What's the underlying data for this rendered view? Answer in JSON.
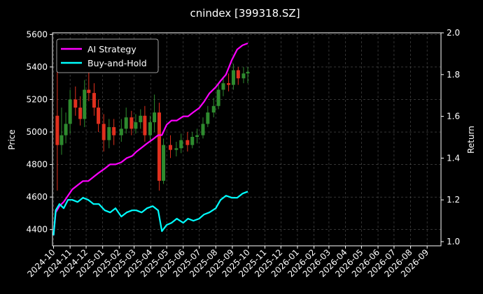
{
  "chart_data": {
    "type": "line",
    "title": "cnindex [399318.SZ]",
    "xlabel": "",
    "ylabel_left": "Price",
    "ylabel_right": "Return",
    "grid": true,
    "legend_placement": "top-left",
    "background": "#000000",
    "colors": {
      "up_candle": "#2e8b2e",
      "down_candle": "#e0301e",
      "ai_strategy": "#ff00ff",
      "buy_and_hold": "#00ffff",
      "grid": "#555555"
    },
    "x_ticks": [
      "2024-10",
      "2024-11",
      "2024-12",
      "2025-01",
      "2025-02",
      "2025-03",
      "2025-04",
      "2025-05",
      "2025-06",
      "2025-07",
      "2025-08",
      "2025-09",
      "2025-10",
      "2025-11",
      "2025-12",
      "2026-01",
      "2026-02",
      "2026-03",
      "2026-04",
      "2026-05",
      "2026-06",
      "2026-07",
      "2026-08",
      "2026-09"
    ],
    "xlim": [
      "2024-09-29",
      "2026-09-27"
    ],
    "y_left": {
      "ylim": [
        4300,
        5610
      ],
      "ticks": [
        4400,
        4600,
        4800,
        5000,
        5200,
        5400,
        5600
      ]
    },
    "y_right": {
      "ylim": [
        0.98,
        2.0
      ],
      "ticks": [
        1.0,
        1.2,
        1.4,
        1.6,
        1.8,
        2.0
      ]
    },
    "candles": {
      "name": "Price",
      "x": [
        "2024-10-08",
        "2024-10-16",
        "2024-10-24",
        "2024-11-01",
        "2024-11-11",
        "2024-11-20",
        "2024-11-28",
        "2024-12-06",
        "2024-12-16",
        "2024-12-24",
        "2025-01-03",
        "2025-01-13",
        "2025-01-22",
        "2025-02-05",
        "2025-02-14",
        "2025-02-24",
        "2025-03-04",
        "2025-03-13",
        "2025-03-21",
        "2025-03-31",
        "2025-04-08",
        "2025-04-17",
        "2025-04-25",
        "2025-05-08",
        "2025-05-19",
        "2025-05-28",
        "2025-06-09",
        "2025-06-18",
        "2025-06-27",
        "2025-07-08",
        "2025-07-17",
        "2025-07-28",
        "2025-08-06",
        "2025-08-15",
        "2025-08-25",
        "2025-09-03",
        "2025-09-12",
        "2025-09-22",
        "2025-09-30"
      ],
      "open": [
        5100,
        4920,
        4980,
        5050,
        5200,
        5150,
        5080,
        5260,
        5240,
        5150,
        5050,
        4950,
        5030,
        4980,
        5020,
        5090,
        5020,
        5060,
        5100,
        4980,
        5060,
        5120,
        4700,
        4920,
        4890,
        4900,
        4950,
        4920,
        4970,
        4980,
        5050,
        5120,
        5160,
        5260,
        5300,
        5290,
        5380,
        5330,
        5360
      ],
      "close": [
        4920,
        4980,
        5050,
        5200,
        5150,
        5080,
        5260,
        5240,
        5150,
        5050,
        4950,
        5030,
        4980,
        5020,
        5090,
        5020,
        5060,
        5100,
        4980,
        5060,
        5120,
        4700,
        4920,
        4890,
        4900,
        4950,
        4920,
        4970,
        4980,
        5050,
        5120,
        5160,
        5260,
        5300,
        5290,
        5380,
        5330,
        5360,
        5370
      ],
      "high": [
        5470,
        5150,
        5120,
        5260,
        5280,
        5220,
        5320,
        5380,
        5300,
        5200,
        5110,
        5080,
        5080,
        5080,
        5150,
        5130,
        5110,
        5140,
        5160,
        5100,
        5230,
        5180,
        4960,
        4980,
        4940,
        4990,
        5000,
        5000,
        5020,
        5090,
        5160,
        5210,
        5300,
        5340,
        5360,
        5420,
        5400,
        5400,
        5400
      ],
      "low": [
        4640,
        4860,
        4930,
        4990,
        5100,
        5040,
        5030,
        5190,
        5100,
        5000,
        4880,
        4900,
        4920,
        4940,
        4990,
        4980,
        4990,
        5020,
        4940,
        4950,
        5000,
        4640,
        4680,
        4840,
        4850,
        4870,
        4880,
        4900,
        4930,
        4960,
        5030,
        5090,
        5140,
        5220,
        5250,
        5260,
        5290,
        5300,
        5300
      ]
    },
    "series": [
      {
        "name": "AI Strategy",
        "axis": "right",
        "x": [
          "2024-10-01",
          "2024-10-05",
          "2024-10-12",
          "2024-10-20",
          "2024-10-28",
          "2024-11-05",
          "2024-11-15",
          "2024-11-25",
          "2024-12-05",
          "2024-12-15",
          "2024-12-25",
          "2025-01-05",
          "2025-01-15",
          "2025-01-25",
          "2025-02-05",
          "2025-02-15",
          "2025-02-25",
          "2025-03-05",
          "2025-03-15",
          "2025-03-25",
          "2025-04-05",
          "2025-04-15",
          "2025-04-22",
          "2025-05-01",
          "2025-05-10",
          "2025-05-20",
          "2025-06-01",
          "2025-06-10",
          "2025-06-20",
          "2025-07-01",
          "2025-07-10",
          "2025-07-20",
          "2025-08-01",
          "2025-08-10",
          "2025-08-20",
          "2025-08-31",
          "2025-09-10",
          "2025-09-20",
          "2025-09-30"
        ],
        "values": [
          1.03,
          1.14,
          1.17,
          1.19,
          1.22,
          1.25,
          1.27,
          1.29,
          1.29,
          1.31,
          1.33,
          1.35,
          1.37,
          1.37,
          1.38,
          1.4,
          1.41,
          1.43,
          1.45,
          1.47,
          1.49,
          1.51,
          1.51,
          1.56,
          1.58,
          1.58,
          1.6,
          1.6,
          1.62,
          1.64,
          1.67,
          1.71,
          1.74,
          1.77,
          1.8,
          1.87,
          1.92,
          1.94,
          1.95
        ]
      },
      {
        "name": "Buy-and-Hold",
        "axis": "right",
        "x": [
          "2024-10-01",
          "2024-10-05",
          "2024-10-12",
          "2024-10-20",
          "2024-10-28",
          "2024-11-05",
          "2024-11-15",
          "2024-11-25",
          "2024-12-05",
          "2024-12-15",
          "2024-12-25",
          "2025-01-05",
          "2025-01-15",
          "2025-01-25",
          "2025-02-05",
          "2025-02-15",
          "2025-02-25",
          "2025-03-05",
          "2025-03-15",
          "2025-03-25",
          "2025-04-05",
          "2025-04-15",
          "2025-04-22",
          "2025-05-01",
          "2025-05-10",
          "2025-05-20",
          "2025-06-01",
          "2025-06-10",
          "2025-06-20",
          "2025-07-01",
          "2025-07-10",
          "2025-07-20",
          "2025-08-01",
          "2025-08-10",
          "2025-08-20",
          "2025-08-31",
          "2025-09-10",
          "2025-09-20",
          "2025-09-30"
        ],
        "values": [
          1.03,
          1.15,
          1.18,
          1.16,
          1.2,
          1.2,
          1.19,
          1.21,
          1.2,
          1.18,
          1.18,
          1.15,
          1.14,
          1.16,
          1.12,
          1.14,
          1.15,
          1.15,
          1.14,
          1.16,
          1.17,
          1.15,
          1.05,
          1.08,
          1.09,
          1.11,
          1.09,
          1.11,
          1.1,
          1.11,
          1.13,
          1.14,
          1.16,
          1.2,
          1.22,
          1.21,
          1.21,
          1.23,
          1.24
        ]
      }
    ]
  }
}
